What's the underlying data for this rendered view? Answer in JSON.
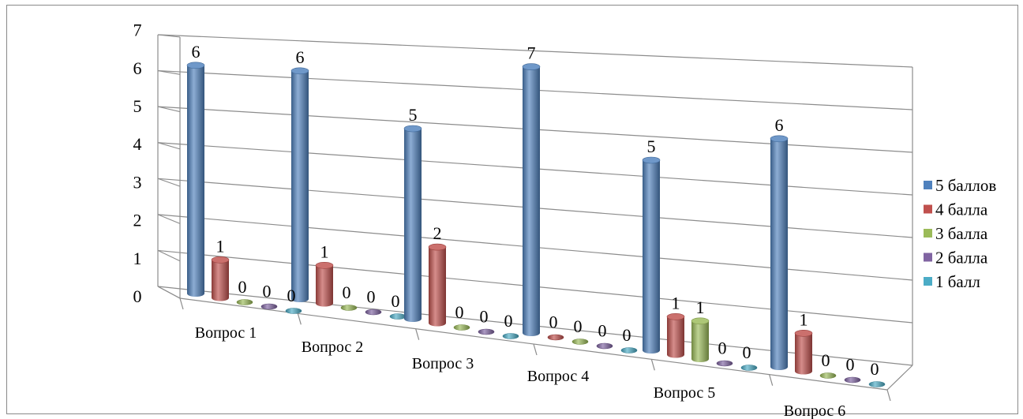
{
  "chart_data": {
    "type": "bar",
    "categories": [
      "Вопрос 1",
      "Вопрос 2",
      "Вопрос 3",
      "Вопрос 4",
      "Вопрос 5",
      "Вопрос 6"
    ],
    "series": [
      {
        "name": "5 баллов",
        "values": [
          6,
          6,
          5,
          7,
          5,
          6
        ],
        "color": "#4f81bd"
      },
      {
        "name": "4 балла",
        "values": [
          1,
          1,
          2,
          0,
          1,
          1
        ],
        "color": "#c0504d"
      },
      {
        "name": "3 балла",
        "values": [
          0,
          0,
          0,
          0,
          1,
          0
        ],
        "color": "#9bbb59"
      },
      {
        "name": "2 балла",
        "values": [
          0,
          0,
          0,
          0,
          0,
          0
        ],
        "color": "#8064a2"
      },
      {
        "name": "1 балл",
        "values": [
          0,
          0,
          0,
          0,
          0,
          0
        ],
        "color": "#4bacc6"
      }
    ],
    "yticks": [
      "0",
      "1",
      "2",
      "3",
      "4",
      "5",
      "6",
      "7"
    ],
    "ylim": [
      0,
      7
    ],
    "grid": true,
    "legend_position": "right",
    "data_labels": true,
    "style": "3d-cylinder"
  }
}
